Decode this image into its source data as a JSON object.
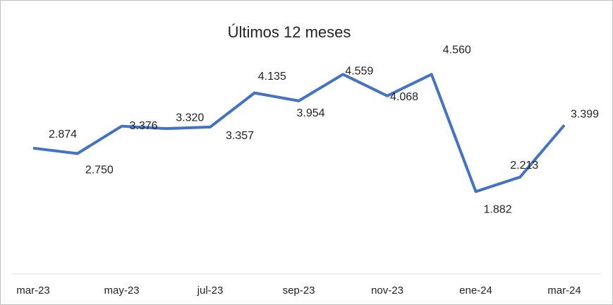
{
  "chart_data": {
    "type": "line",
    "title": "Últimos 12 meses",
    "categories": [
      "mar-23",
      null,
      "may-23",
      null,
      "jul-23",
      null,
      "sep-23",
      null,
      "nov-23",
      null,
      "ene-24",
      null,
      "mar-24"
    ],
    "series": [
      {
        "color": "#4472c4",
        "values": [
          2874,
          2750,
          3376,
          3320,
          3357,
          4135,
          3954,
          4559,
          4068,
          4560,
          1882,
          2213,
          3399
        ],
        "value_labels": [
          "2.874",
          "2.750",
          "3.376",
          "3.320",
          "3.357",
          "4.135",
          "3.954",
          "4.559",
          "4.068",
          "4.560",
          "1.882",
          "2.213",
          "3.399"
        ]
      }
    ]
  }
}
